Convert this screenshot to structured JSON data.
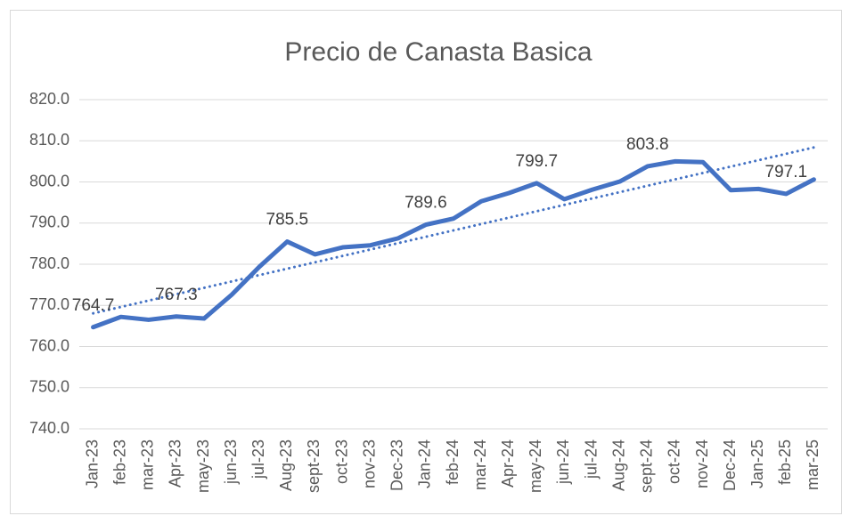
{
  "chart_data": {
    "type": "line",
    "title": "Precio de Canasta Basica",
    "categories": [
      "Jan-23",
      "feb-23",
      "mar-23",
      "Apr-23",
      "may-23",
      "jun-23",
      "jul-23",
      "Aug-23",
      "sept-23",
      "oct-23",
      "nov-23",
      "Dec-23",
      "Jan-24",
      "feb-24",
      "mar-24",
      "Apr-24",
      "may-24",
      "jun-24",
      "jul-24",
      "Aug-24",
      "sept-24",
      "oct-24",
      "nov-24",
      "Dec-24",
      "Jan-25",
      "feb-25",
      "mar-25"
    ],
    "values": [
      764.7,
      767.2,
      766.5,
      767.3,
      766.8,
      772.6,
      779.4,
      785.5,
      782.4,
      784.1,
      784.6,
      786.3,
      789.6,
      791.1,
      795.3,
      797.3,
      799.7,
      795.8,
      798.1,
      800.1,
      803.8,
      805.0,
      804.8,
      798.0,
      798.3,
      797.1,
      800.6
    ],
    "value_labels": [
      "764.7",
      null,
      null,
      "767.3",
      null,
      null,
      null,
      "785.5",
      null,
      null,
      null,
      null,
      "789.6",
      null,
      null,
      null,
      "799.7",
      null,
      null,
      null,
      "803.8",
      null,
      null,
      null,
      null,
      "797.1",
      null
    ],
    "color": "#4472c4",
    "trendline": "linear",
    "ylim": [
      740,
      820
    ],
    "yticks": [
      {
        "value": 740,
        "label": "740.0"
      },
      {
        "value": 750,
        "label": "750.0"
      },
      {
        "value": 760,
        "label": "760.0"
      },
      {
        "value": 770,
        "label": "770.0"
      },
      {
        "value": 780,
        "label": "780.0"
      },
      {
        "value": 790,
        "label": "790.0"
      },
      {
        "value": 800,
        "label": "800.0"
      },
      {
        "value": 810,
        "label": "810.0"
      },
      {
        "value": 820,
        "label": "820.0"
      }
    ],
    "grid": true
  }
}
